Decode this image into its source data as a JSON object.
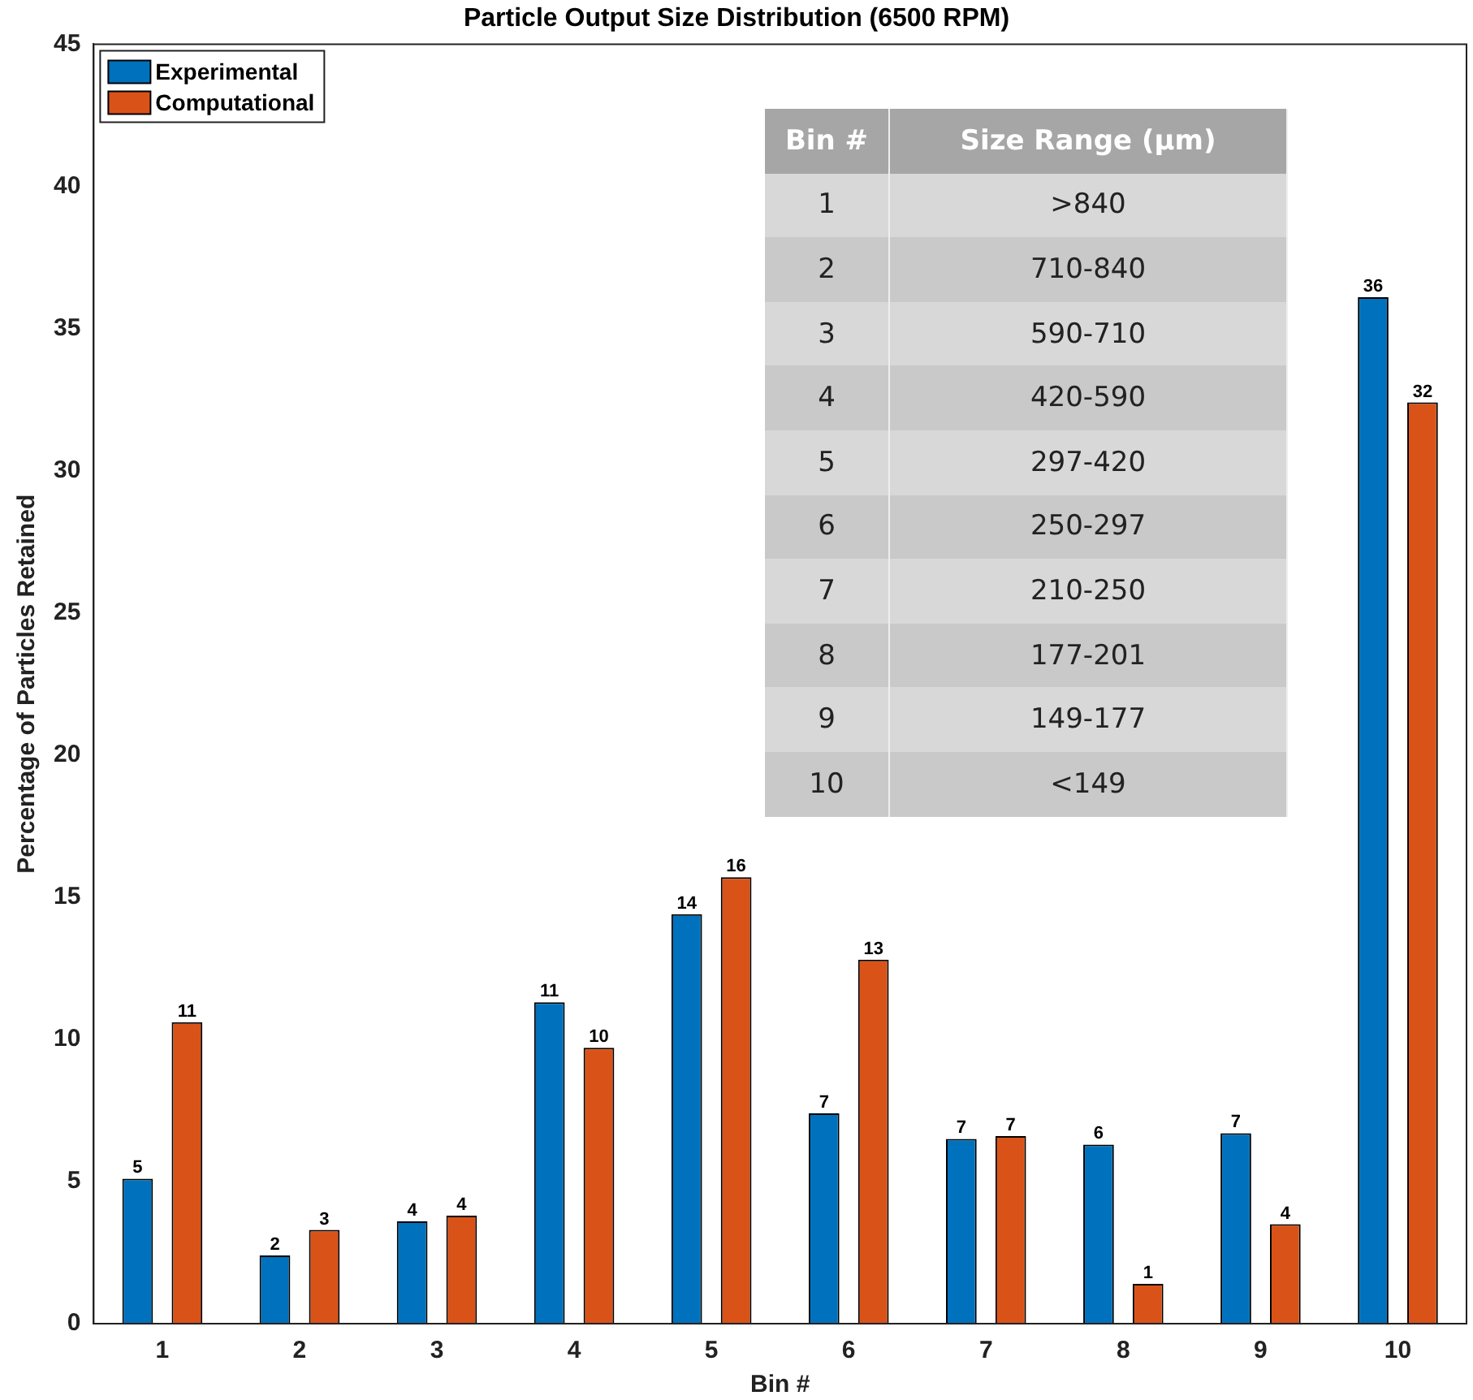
{
  "chart_data": {
    "type": "bar",
    "title": "Particle Output Size Distribution (6500 RPM)",
    "xlabel": "Bin #",
    "ylabel": "Percentage of Particles Retained",
    "categories": [
      "1",
      "2",
      "3",
      "4",
      "5",
      "6",
      "7",
      "8",
      "9",
      "10"
    ],
    "series": [
      {
        "name": "Experimental",
        "color": "#0072bd",
        "values": [
          5.1,
          2.4,
          3.6,
          11.3,
          14.4,
          7.4,
          6.5,
          6.3,
          6.7,
          36.1
        ],
        "value_labels": [
          "5",
          "2",
          "4",
          "11",
          "14",
          "7",
          "7",
          "6",
          "7",
          "36"
        ]
      },
      {
        "name": "Computational",
        "color": "#d95319",
        "values": [
          10.6,
          3.3,
          3.8,
          9.7,
          15.7,
          12.8,
          6.6,
          1.4,
          3.5,
          32.4
        ],
        "value_labels": [
          "11",
          "3",
          "4",
          "10",
          "16",
          "13",
          "7",
          "1",
          "4",
          "32"
        ]
      }
    ],
    "ylim": [
      0,
      45
    ],
    "yticks": [
      0,
      5,
      10,
      15,
      20,
      25,
      30,
      35,
      40,
      45
    ],
    "grid": false,
    "legend": "top left",
    "annotations": [
      "Bin #",
      "Size Range (μm)",
      "1",
      ">840",
      "2",
      "710-840",
      "3",
      "590-710",
      "4",
      "420-590",
      "5",
      "297-420",
      "6",
      "250-297",
      "7",
      "210-250",
      "8",
      "177-201",
      "9",
      "149-177",
      "10",
      "<149"
    ]
  }
}
